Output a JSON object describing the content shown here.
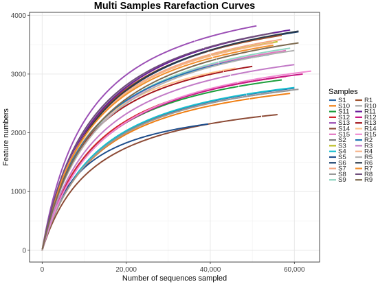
{
  "chart_data": {
    "type": "line",
    "title": "Multi Samples Rarefaction Curves",
    "xlabel": "Number of sequences sampled",
    "ylabel": "Feature numbers",
    "xlim": [
      -3000,
      66000
    ],
    "ylim": [
      -200,
      4050
    ],
    "x_ticks": [
      0,
      20000,
      40000,
      60000
    ],
    "x_tick_labels": [
      "0",
      "20,000",
      "40,000",
      "60,000"
    ],
    "y_ticks": [
      0,
      1000,
      2000,
      3000,
      4000
    ],
    "y_tick_labels": [
      "0",
      "1000",
      "2000",
      "3000",
      "4000"
    ],
    "grid": true,
    "legend_title": "Samples",
    "legend_position": "right",
    "series": [
      {
        "name": "S1",
        "color": "#2e6aa8",
        "max_x": 60000,
        "max_y": 2760
      },
      {
        "name": "S10",
        "color": "#f07f13",
        "max_x": 59000,
        "max_y": 2670
      },
      {
        "name": "S11",
        "color": "#1b9e3b",
        "max_x": 57000,
        "max_y": 2900
      },
      {
        "name": "S12",
        "color": "#d1232a",
        "max_x": 58000,
        "max_y": 2960
      },
      {
        "name": "S13",
        "color": "#9b4fb5",
        "max_x": 51000,
        "max_y": 3820
      },
      {
        "name": "S14",
        "color": "#8c4a35",
        "max_x": 56000,
        "max_y": 2310
      },
      {
        "name": "S15",
        "color": "#e377c2",
        "max_x": 58000,
        "max_y": 3400
      },
      {
        "name": "S2",
        "color": "#7f7f7f",
        "max_x": 59000,
        "max_y": 2720
      },
      {
        "name": "S3",
        "color": "#bcbd22",
        "max_x": 56000,
        "max_y": 3550
      },
      {
        "name": "S4",
        "color": "#17becf",
        "max_x": 60000,
        "max_y": 2770
      },
      {
        "name": "S5",
        "color": "#1f4e8c",
        "max_x": 39500,
        "max_y": 2150
      },
      {
        "name": "S6",
        "color": "#153d6b",
        "max_x": 61000,
        "max_y": 3720
      },
      {
        "name": "S7",
        "color": "#f4a582",
        "max_x": 57000,
        "max_y": 3590
      },
      {
        "name": "S8",
        "color": "#999999",
        "max_x": 61000,
        "max_y": 2740
      },
      {
        "name": "S9",
        "color": "#8fd6c1",
        "max_x": 59000,
        "max_y": 3440
      },
      {
        "name": "R1",
        "color": "#a0522d",
        "max_x": 57000,
        "max_y": 3660
      },
      {
        "name": "R10",
        "color": "#a6a6a6",
        "max_x": 57000,
        "max_y": 3720
      },
      {
        "name": "R11",
        "color": "#6a1b9a",
        "max_x": 59000,
        "max_y": 3750
      },
      {
        "name": "R12",
        "color": "#c71585",
        "max_x": 62000,
        "max_y": 3000
      },
      {
        "name": "R13",
        "color": "#a3151c",
        "max_x": 50000,
        "max_y": 3130
      },
      {
        "name": "R14",
        "color": "#ffc48c",
        "max_x": 46000,
        "max_y": 3100
      },
      {
        "name": "R15",
        "color": "#f08ad2",
        "max_x": 64000,
        "max_y": 3050
      },
      {
        "name": "R2",
        "color": "#1f77b4",
        "max_x": 54000,
        "max_y": 3330
      },
      {
        "name": "R3",
        "color": "#c27ac7",
        "max_x": 60000,
        "max_y": 3160
      },
      {
        "name": "R4",
        "color": "#f6b48a",
        "max_x": 55000,
        "max_y": 3530
      },
      {
        "name": "R5",
        "color": "#b0b0b0",
        "max_x": 60000,
        "max_y": 3400
      },
      {
        "name": "R6",
        "color": "#2b3a4a",
        "max_x": 61000,
        "max_y": 3730
      },
      {
        "name": "R7",
        "color": "#f28e2b",
        "max_x": 55000,
        "max_y": 3490
      },
      {
        "name": "R8",
        "color": "#6f4e7c",
        "max_x": 55000,
        "max_y": 3700
      },
      {
        "name": "R9",
        "color": "#7d6a4f",
        "max_x": 61000,
        "max_y": 3530
      }
    ]
  }
}
